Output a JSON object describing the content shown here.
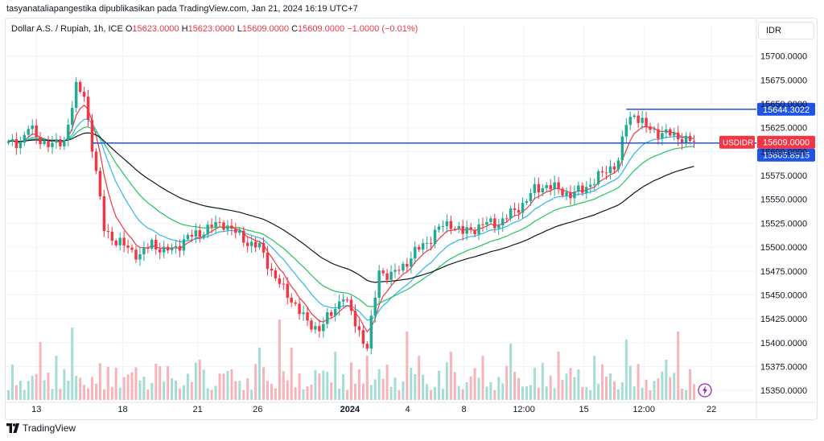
{
  "header": {
    "attribution": "tasyanataliapangestika dipublikasikan pada TradingView.com, Jan 21, 2024 16:19 UTC+7"
  },
  "legend": {
    "symbol": "Dollar A.S. / Rupiah, 1h, ICE",
    "o_label": "O",
    "o_value": "15623.0000",
    "h_label": "H",
    "h_value": "15623.0000",
    "l_label": "L",
    "l_value": "15609.0000",
    "c_label": "C",
    "c_value": "15609.0000",
    "change": "−1.0000 (−0.01%)"
  },
  "currency": "IDR",
  "footer": {
    "brand": "TradingView"
  },
  "colors": {
    "up": "#22ab94",
    "down": "#f23645",
    "vol_up": "#a5dcd3",
    "vol_down": "#f8b3b8",
    "ema_red": "#f23645",
    "ema_blue": "#2fb7e8",
    "ema_green": "#22c55e",
    "ema_black": "#131722",
    "hline": "#1e53e5",
    "price_tag": "#f23645",
    "accent": "#9c27b0"
  },
  "icons": [
    "tradingview-logo-icon",
    "lightning-icon"
  ],
  "chart_data": {
    "type": "candlestick",
    "title": "Dollar A.S. / Rupiah, 1h, ICE",
    "ylim": [
      15340,
      15725
    ],
    "y_ticks": [
      "15700.0000",
      "15675.0000",
      "15650.0000",
      "15625.0000",
      "15600.0000",
      "15575.0000",
      "15550.0000",
      "15525.0000",
      "15500.0000",
      "15475.0000",
      "15450.0000",
      "15425.0000",
      "15400.0000",
      "15375.0000",
      "15350.0000"
    ],
    "x_ticks": [
      {
        "label": "13",
        "pos": 0.04,
        "bold": false
      },
      {
        "label": "18",
        "pos": 0.155,
        "bold": false
      },
      {
        "label": "21",
        "pos": 0.255,
        "bold": false
      },
      {
        "label": "26",
        "pos": 0.335,
        "bold": false
      },
      {
        "label": "2024",
        "pos": 0.458,
        "bold": true
      },
      {
        "label": "4",
        "pos": 0.535,
        "bold": false
      },
      {
        "label": "8",
        "pos": 0.61,
        "bold": false
      },
      {
        "label": "12:00",
        "pos": 0.69,
        "bold": false
      },
      {
        "label": "15",
        "pos": 0.77,
        "bold": false
      },
      {
        "label": "12:00",
        "pos": 0.85,
        "bold": false
      },
      {
        "label": "22",
        "pos": 0.94,
        "bold": false
      }
    ],
    "horizontal_lines": [
      {
        "value": 15644.3022,
        "label": "15644.3022"
      },
      {
        "value": 15609.0,
        "label": "15609.0000"
      }
    ],
    "last_price": {
      "symbol": "USDIDR",
      "value": "15609.0000"
    },
    "secondary_price": {
      "value": "15605.8915"
    },
    "anchors": [
      [
        0,
        15608
      ],
      [
        3,
        15610
      ],
      [
        5,
        15625
      ],
      [
        8,
        15612
      ],
      [
        11,
        15606
      ],
      [
        14,
        15612
      ],
      [
        17,
        15666
      ],
      [
        19,
        15660
      ],
      [
        21,
        15605
      ],
      [
        24,
        15520
      ],
      [
        27,
        15505
      ],
      [
        30,
        15500
      ],
      [
        33,
        15490
      ],
      [
        36,
        15505
      ],
      [
        39,
        15495
      ],
      [
        42,
        15500
      ],
      [
        45,
        15510
      ],
      [
        48,
        15515
      ],
      [
        51,
        15522
      ],
      [
        54,
        15525
      ],
      [
        57,
        15515
      ],
      [
        60,
        15505
      ],
      [
        63,
        15500
      ],
      [
        66,
        15475
      ],
      [
        69,
        15455
      ],
      [
        72,
        15440
      ],
      [
        75,
        15420
      ],
      [
        78,
        15415
      ],
      [
        81,
        15430
      ],
      [
        84,
        15450
      ],
      [
        87,
        15420
      ],
      [
        90,
        15395
      ],
      [
        93,
        15475
      ],
      [
        96,
        15470
      ],
      [
        99,
        15480
      ],
      [
        102,
        15495
      ],
      [
        105,
        15505
      ],
      [
        108,
        15520
      ],
      [
        111,
        15525
      ],
      [
        114,
        15515
      ],
      [
        117,
        15520
      ],
      [
        120,
        15525
      ],
      [
        123,
        15525
      ],
      [
        126,
        15535
      ],
      [
        129,
        15545
      ],
      [
        132,
        15560
      ],
      [
        135,
        15565
      ],
      [
        138,
        15560
      ],
      [
        141,
        15555
      ],
      [
        144,
        15560
      ],
      [
        147,
        15570
      ],
      [
        150,
        15580
      ],
      [
        153,
        15590
      ],
      [
        155,
        15630
      ],
      [
        157,
        15640
      ],
      [
        160,
        15625
      ],
      [
        163,
        15620
      ],
      [
        166,
        15618
      ],
      [
        169,
        15614
      ],
      [
        172,
        15609
      ]
    ],
    "volume_spikes": [
      {
        "i": 8,
        "v": 0.72
      },
      {
        "i": 12,
        "v": 0.55
      },
      {
        "i": 16,
        "v": 0.9
      },
      {
        "i": 27,
        "v": 0.4
      },
      {
        "i": 37,
        "v": 0.45
      },
      {
        "i": 48,
        "v": 0.5
      },
      {
        "i": 63,
        "v": 0.65
      },
      {
        "i": 68,
        "v": 1.0
      },
      {
        "i": 71,
        "v": 0.65
      },
      {
        "i": 82,
        "v": 0.6
      },
      {
        "i": 90,
        "v": 0.55
      },
      {
        "i": 100,
        "v": 0.85
      },
      {
        "i": 103,
        "v": 0.55
      },
      {
        "i": 111,
        "v": 0.6
      },
      {
        "i": 119,
        "v": 0.55
      },
      {
        "i": 126,
        "v": 0.7
      },
      {
        "i": 138,
        "v": 0.6
      },
      {
        "i": 147,
        "v": 0.55
      },
      {
        "i": 155,
        "v": 0.75
      },
      {
        "i": 165,
        "v": 0.5
      },
      {
        "i": 168,
        "v": 0.85
      }
    ]
  }
}
